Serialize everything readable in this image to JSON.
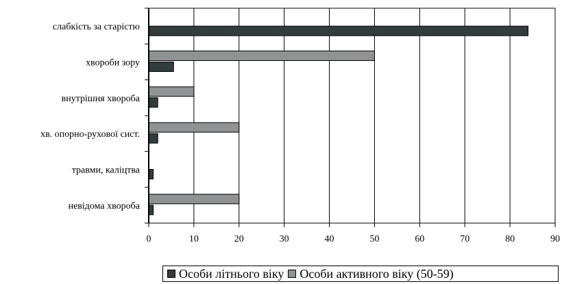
{
  "chart_data": {
    "type": "bar",
    "orientation": "horizontal",
    "categories": [
      "слабкість за старістю",
      "хвороби зору",
      "внутрішня хвороба",
      "хв. опорно-рухової сист.",
      "травми, каліцтва",
      "невідома хвороба"
    ],
    "series": [
      {
        "name": "Особи літнього віку",
        "color": "#333c3c",
        "values": [
          84,
          5.5,
          2,
          2,
          1,
          1
        ]
      },
      {
        "name": "Особи активного віку (50-59)",
        "color": "#8f9393",
        "values": [
          0,
          50,
          10,
          20,
          0,
          20
        ]
      }
    ],
    "xlim": [
      0,
      90
    ],
    "xticks": [
      "0",
      "10",
      "20",
      "30",
      "40",
      "50",
      "60",
      "70",
      "80",
      "90"
    ],
    "grid": "vertical",
    "legend_position": "bottom"
  }
}
